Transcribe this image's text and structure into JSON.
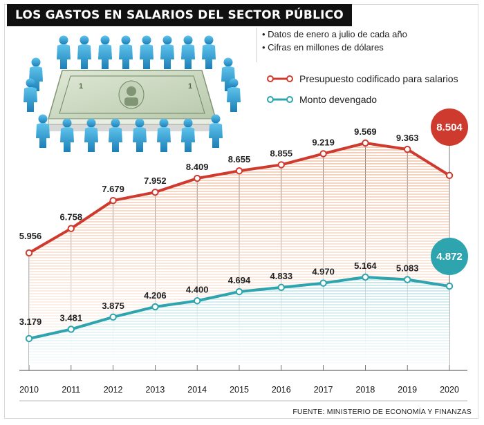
{
  "title": "LOS GASTOS EN SALARIOS DEL SECTOR PÚBLICO",
  "notes": [
    "Datos de enero a julio de cada año",
    "Cifras en millones de dólares"
  ],
  "source": "FUENTE: MINISTERIO DE ECONOMÍA Y FINANZAS",
  "colors": {
    "red": "#cf3a2e",
    "teal": "#2da4ae",
    "title_bg": "#111111"
  },
  "illustration": {
    "description_icon": "people-around-dollar-icon"
  },
  "chart_data": {
    "type": "line",
    "x": [
      "2010",
      "2011",
      "2012",
      "2013",
      "2014",
      "2015",
      "2016",
      "2017",
      "2018",
      "2019",
      "2020"
    ],
    "series": [
      {
        "name": "Presupuesto codificado para salarios",
        "color": "#cf3a2e",
        "values": [
          5.956,
          6.758,
          7.679,
          7.952,
          8.409,
          8.655,
          8.855,
          9.219,
          9.569,
          9.363,
          8.504
        ],
        "labels": [
          "5.956",
          "6.758",
          "7.679",
          "7.952",
          "8.409",
          "8.655",
          "8.855",
          "9.219",
          "9.569",
          "9.363",
          "8.504"
        ]
      },
      {
        "name": "Monto devengado",
        "color": "#2da4ae",
        "values": [
          3.179,
          3.481,
          3.875,
          4.206,
          4.4,
          4.694,
          4.833,
          4.97,
          5.164,
          5.083,
          4.872
        ],
        "labels": [
          "3.179",
          "3.481",
          "3.875",
          "4.206",
          "4.400",
          "4.694",
          "4.833",
          "4.970",
          "5.164",
          "5.083",
          "4.872"
        ]
      }
    ],
    "grid": false,
    "legend": "top-right"
  }
}
